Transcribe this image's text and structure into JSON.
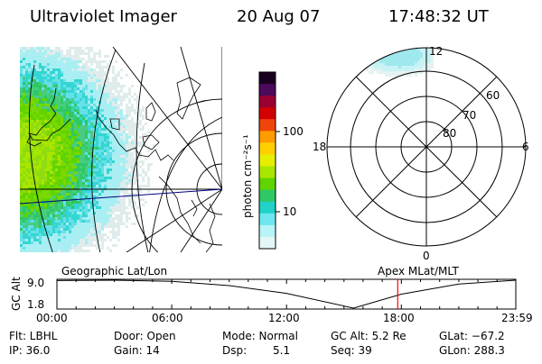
{
  "header": {
    "title": "Ultraviolet Imager",
    "date": "20 Aug 07",
    "time": "17:48:32 UT"
  },
  "colorbar": {
    "label": "photon cm⁻²s⁻¹",
    "ticks": [
      "100",
      "10"
    ],
    "colors": [
      "#1a0020",
      "#4b0a5c",
      "#9a0032",
      "#d30000",
      "#f0450a",
      "#ff9c00",
      "#ffd000",
      "#e6ee00",
      "#a8e600",
      "#5fd400",
      "#2ec864",
      "#20d2c8",
      "#6ee6f0",
      "#b8f4f6",
      "#e4f6f6"
    ]
  },
  "polar": {
    "lat_labels": [
      "60",
      "70",
      "80"
    ],
    "mlt_labels": [
      "12",
      "18",
      "6",
      "0"
    ]
  },
  "timeline": {
    "left_title": "Geographic Lat/Lon",
    "right_title": "Apex  MLat/MLT",
    "ylabel": "GC Alt",
    "y_ticks": [
      "9.0",
      "1.8"
    ],
    "x_ticks": [
      "00:00",
      "06:00",
      "12:00",
      "18:00",
      "23:59"
    ],
    "marker_color": "#ff0000"
  },
  "chart_data": {
    "type": "line",
    "title": "",
    "xlabel": "",
    "ylabel": "GC Alt",
    "x": [
      0,
      3,
      6,
      9,
      12,
      15.5,
      18,
      21,
      23.98
    ],
    "y": [
      8.9,
      9.0,
      8.7,
      7.6,
      5.6,
      1.8,
      5.4,
      8.0,
      9.0
    ],
    "xlim": [
      0,
      23.98
    ],
    "ylim": [
      1.8,
      9.0
    ],
    "marker_x": 17.81
  },
  "info": {
    "flt": "Flt: LBHL",
    "ip": "IP: 36.0",
    "door": "Door: Open",
    "gain": "Gain: 14",
    "mode": "Mode: Normal",
    "dsp_label": "Dsp:",
    "dsp_value": "5.1",
    "gcalt": "GC Alt: 5.2 Re",
    "seq": "Seq: 39",
    "glat": "GLat: −67.2",
    "glon": "GLon: 288.3"
  }
}
